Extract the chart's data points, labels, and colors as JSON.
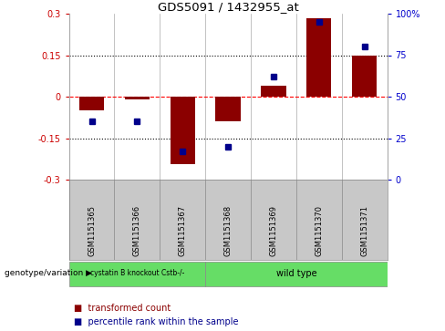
{
  "title": "GDS5091 / 1432955_at",
  "samples": [
    "GSM1151365",
    "GSM1151366",
    "GSM1151367",
    "GSM1151368",
    "GSM1151369",
    "GSM1151370",
    "GSM1151371"
  ],
  "bar_values": [
    -0.05,
    -0.01,
    -0.245,
    -0.09,
    0.04,
    0.285,
    0.15
  ],
  "dot_values_pct": [
    35,
    35,
    17,
    20,
    62,
    95,
    80
  ],
  "ylim_left": [
    -0.3,
    0.3
  ],
  "ylim_right": [
    0,
    100
  ],
  "yticks_left": [
    -0.3,
    -0.15,
    0,
    0.15,
    0.3
  ],
  "yticks_right": [
    0,
    25,
    50,
    75,
    100
  ],
  "ytick_labels_left": [
    "-0.3",
    "-0.15",
    "0",
    "0.15",
    "0.3"
  ],
  "ytick_labels_right": [
    "0",
    "25",
    "50",
    "75",
    "100%"
  ],
  "dotted_lines": [
    -0.15,
    0.15
  ],
  "bar_color": "#8B0000",
  "dot_color": "#00008B",
  "bar_width": 0.55,
  "group1_label": "cystatin B knockout Cstb-/-",
  "group2_label": "wild type",
  "group1_count": 3,
  "group2_count": 4,
  "group_color": "#66DD66",
  "genotype_label": "genotype/variation",
  "legend_bar_label": "transformed count",
  "legend_dot_label": "percentile rank within the sample",
  "xlabel_area_color": "#C8C8C8",
  "plot_bg_color": "#FFFFFF",
  "right_ylabel_color": "#0000CC",
  "left_ylabel_color": "#CC0000",
  "fig_width": 4.88,
  "fig_height": 3.63,
  "dpi": 100
}
